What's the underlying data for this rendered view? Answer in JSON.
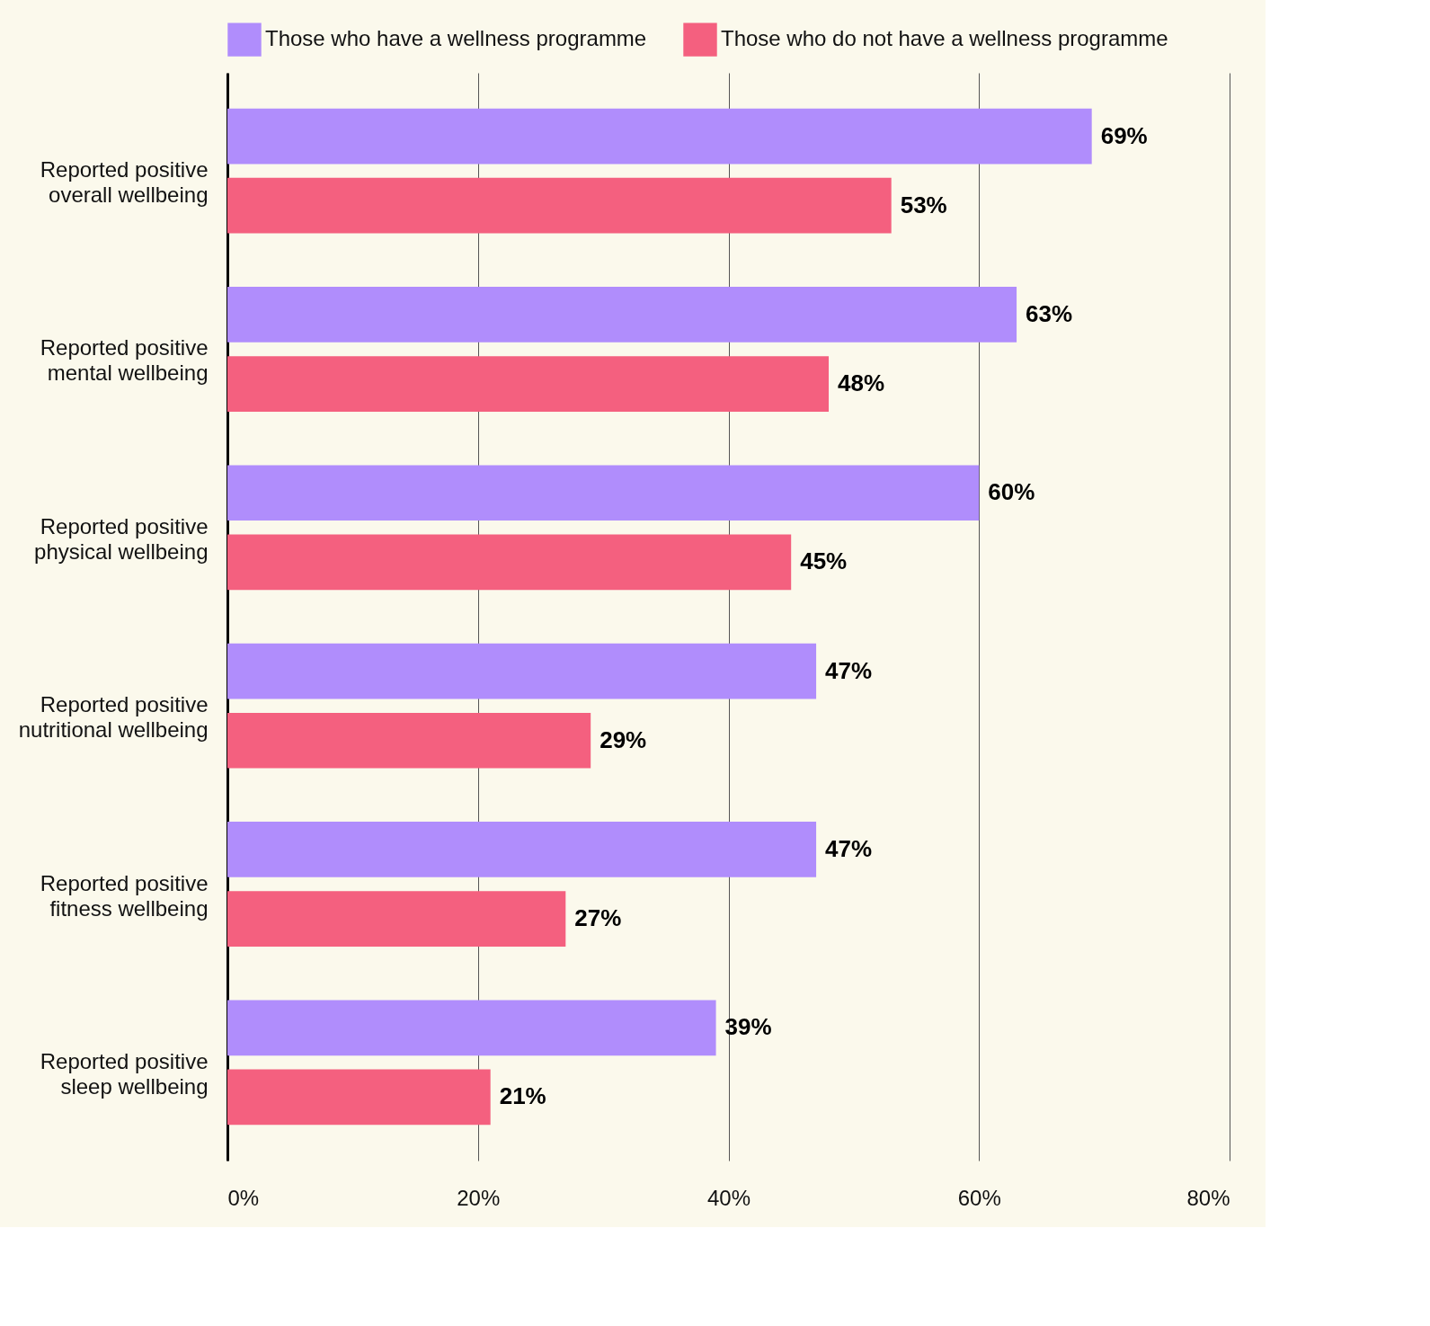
{
  "chart_data": {
    "type": "bar",
    "orientation": "horizontal",
    "categories": [
      "Reported positive\noverall wellbeing",
      "Reported positive\nmental wellbeing",
      "Reported positive\nphysical wellbeing",
      "Reported positive\nnutritional wellbeing",
      "Reported positive\nfitness wellbeing",
      "Reported positive\nsleep wellbeing"
    ],
    "series": [
      {
        "name": "Those who have a wellness programme",
        "color": "#b08dfc",
        "values": [
          69,
          63,
          60,
          47,
          47,
          39
        ],
        "value_labels": [
          "69%",
          "63%",
          "60%",
          "47%",
          "47%",
          "39%"
        ]
      },
      {
        "name": "Those who do not have a wellness programme",
        "color": "#f4607f",
        "values": [
          53,
          48,
          45,
          29,
          27,
          21
        ],
        "value_labels": [
          "53%",
          "48%",
          "45%",
          "29%",
          "27%",
          "21%"
        ]
      }
    ],
    "xlim": [
      0,
      80
    ],
    "xticks": [
      {
        "value": 0,
        "label": "0%"
      },
      {
        "value": 20,
        "label": "20%"
      },
      {
        "value": 40,
        "label": "40%"
      },
      {
        "value": 60,
        "label": "60%"
      },
      {
        "value": 80,
        "label": "80%"
      }
    ],
    "grid": "x",
    "legend": "top"
  }
}
